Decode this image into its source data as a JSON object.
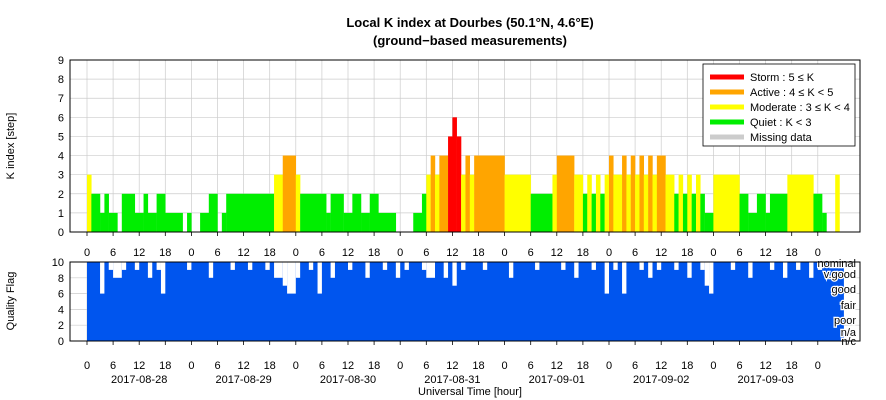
{
  "chart_data": [
    {
      "type": "bar",
      "title": "Local K index at Dourbes (50.1°N, 4.6°E)",
      "subtitle": "(ground−based measurements)",
      "ylabel": "K index [step]",
      "ylim": [
        0,
        9
      ],
      "yticks": [
        "0",
        "1",
        "2",
        "3",
        "4",
        "5",
        "6",
        "7",
        "8",
        "9"
      ],
      "grid": true,
      "legend_position": "top-right",
      "legend": [
        {
          "label": "Storm : 5 ≤ K",
          "color": "#ff0000"
        },
        {
          "label": "Active : 4 ≤ K < 5",
          "color": "#ffa500"
        },
        {
          "label": "Moderate : 3 ≤ K < 4",
          "color": "#ffff00"
        },
        {
          "label": "Quiet : K < 3",
          "color": "#00ee00"
        },
        {
          "label": "Missing data",
          "color": "#cccccc"
        }
      ],
      "x_unit": "hour",
      "x_range_hours": [
        0,
        174
      ],
      "segments": [
        {
          "start": 0,
          "end": 1,
          "k": 3
        },
        {
          "start": 1,
          "end": 3,
          "k": 2
        },
        {
          "start": 3,
          "end": 4,
          "k": 1
        },
        {
          "start": 4,
          "end": 5,
          "k": 2
        },
        {
          "start": 5,
          "end": 7,
          "k": 1
        },
        {
          "start": 7,
          "end": 8,
          "k": 0
        },
        {
          "start": 8,
          "end": 11,
          "k": 2
        },
        {
          "start": 11,
          "end": 13,
          "k": 1
        },
        {
          "start": 13,
          "end": 14,
          "k": 2
        },
        {
          "start": 14,
          "end": 16,
          "k": 1
        },
        {
          "start": 16,
          "end": 18,
          "k": 2
        },
        {
          "start": 18,
          "end": 22,
          "k": 1
        },
        {
          "start": 22,
          "end": 23,
          "k": 0
        },
        {
          "start": 23,
          "end": 24,
          "k": 1
        },
        {
          "start": 24,
          "end": 26,
          "k": 0
        },
        {
          "start": 26,
          "end": 28,
          "k": 1
        },
        {
          "start": 28,
          "end": 30,
          "k": 2
        },
        {
          "start": 30,
          "end": 31,
          "k": 0
        },
        {
          "start": 31,
          "end": 32,
          "k": 1
        },
        {
          "start": 32,
          "end": 43,
          "k": 2
        },
        {
          "start": 43,
          "end": 45,
          "k": 3
        },
        {
          "start": 45,
          "end": 48,
          "k": 4
        },
        {
          "start": 48,
          "end": 49,
          "k": 3
        },
        {
          "start": 49,
          "end": 55,
          "k": 2
        },
        {
          "start": 55,
          "end": 56,
          "k": 1
        },
        {
          "start": 56,
          "end": 59,
          "k": 2
        },
        {
          "start": 59,
          "end": 61,
          "k": 1
        },
        {
          "start": 61,
          "end": 63,
          "k": 2
        },
        {
          "start": 63,
          "end": 65,
          "k": 1
        },
        {
          "start": 65,
          "end": 67,
          "k": 2
        },
        {
          "start": 67,
          "end": 71,
          "k": 1
        },
        {
          "start": 71,
          "end": 75,
          "k": 0
        },
        {
          "start": 75,
          "end": 77,
          "k": 1
        },
        {
          "start": 77,
          "end": 78,
          "k": 2
        },
        {
          "start": 78,
          "end": 79,
          "k": 3
        },
        {
          "start": 79,
          "end": 80,
          "k": 4
        },
        {
          "start": 80,
          "end": 81,
          "k": 3
        },
        {
          "start": 81,
          "end": 83,
          "k": 4
        },
        {
          "start": 83,
          "end": 84,
          "k": 5
        },
        {
          "start": 84,
          "end": 85,
          "k": 6
        },
        {
          "start": 85,
          "end": 86,
          "k": 5
        },
        {
          "start": 86,
          "end": 87,
          "k": 3
        },
        {
          "start": 87,
          "end": 88,
          "k": 4
        },
        {
          "start": 88,
          "end": 89,
          "k": 3
        },
        {
          "start": 89,
          "end": 96,
          "k": 4
        },
        {
          "start": 96,
          "end": 102,
          "k": 3
        },
        {
          "start": 102,
          "end": 107,
          "k": 2
        },
        {
          "start": 107,
          "end": 108,
          "k": 3
        },
        {
          "start": 108,
          "end": 112,
          "k": 4
        },
        {
          "start": 112,
          "end": 114,
          "k": 3
        },
        {
          "start": 114,
          "end": 115,
          "k": 2
        },
        {
          "start": 115,
          "end": 116,
          "k": 3
        },
        {
          "start": 116,
          "end": 117,
          "k": 2
        },
        {
          "start": 117,
          "end": 118,
          "k": 3
        },
        {
          "start": 118,
          "end": 119,
          "k": 2
        },
        {
          "start": 119,
          "end": 120,
          "k": 3
        },
        {
          "start": 120,
          "end": 121,
          "k": 4
        },
        {
          "start": 121,
          "end": 123,
          "k": 3
        },
        {
          "start": 123,
          "end": 124,
          "k": 4
        },
        {
          "start": 124,
          "end": 125,
          "k": 3
        },
        {
          "start": 125,
          "end": 126,
          "k": 4
        },
        {
          "start": 126,
          "end": 127,
          "k": 3
        },
        {
          "start": 127,
          "end": 128,
          "k": 4
        },
        {
          "start": 128,
          "end": 129,
          "k": 3
        },
        {
          "start": 129,
          "end": 130,
          "k": 4
        },
        {
          "start": 130,
          "end": 131,
          "k": 3
        },
        {
          "start": 131,
          "end": 133,
          "k": 4
        },
        {
          "start": 133,
          "end": 135,
          "k": 3
        },
        {
          "start": 135,
          "end": 136,
          "k": 2
        },
        {
          "start": 136,
          "end": 137,
          "k": 3
        },
        {
          "start": 137,
          "end": 138,
          "k": 2
        },
        {
          "start": 138,
          "end": 139,
          "k": 3
        },
        {
          "start": 139,
          "end": 140,
          "k": 2
        },
        {
          "start": 140,
          "end": 141,
          "k": 3
        },
        {
          "start": 141,
          "end": 142,
          "k": 2
        },
        {
          "start": 142,
          "end": 144,
          "k": 1
        },
        {
          "start": 144,
          "end": 150,
          "k": 3
        },
        {
          "start": 150,
          "end": 152,
          "k": 2
        },
        {
          "start": 152,
          "end": 154,
          "k": 1
        },
        {
          "start": 154,
          "end": 156,
          "k": 2
        },
        {
          "start": 156,
          "end": 157,
          "k": 1
        },
        {
          "start": 157,
          "end": 161,
          "k": 2
        },
        {
          "start": 161,
          "end": 167,
          "k": 3
        },
        {
          "start": 167,
          "end": 169,
          "k": 2
        },
        {
          "start": 169,
          "end": 170,
          "k": 1
        },
        {
          "start": 170,
          "end": 172,
          "k": 0
        },
        {
          "start": 172,
          "end": 173,
          "k": 3
        }
      ]
    },
    {
      "type": "bar",
      "ylabel": "Quality Flag",
      "xlabel": "Universal Time [hour]",
      "ylim": [
        0,
        10
      ],
      "yticks": [
        "0",
        "2",
        "4",
        "6",
        "8",
        "10"
      ],
      "bar_color": "#0055ee",
      "base_quality": 10,
      "category_labels": [
        "nominal",
        "v.good",
        "good",
        "fair",
        "poor",
        "n/a",
        "n/c"
      ],
      "hour_ticks": [
        "0",
        "6",
        "12",
        "18",
        "0",
        "6",
        "12",
        "18",
        "0",
        "6",
        "12",
        "18",
        "0",
        "6",
        "12",
        "18",
        "0",
        "6",
        "12",
        "18",
        "0",
        "6",
        "12",
        "18",
        "0",
        "6",
        "12",
        "18",
        "0"
      ],
      "date_labels": [
        "2017-08-28",
        "2017-08-29",
        "2017-08-30",
        "2017-08-31",
        "2017-09-01",
        "2017-09-02",
        "2017-09-03"
      ],
      "dips": [
        {
          "start": 3,
          "end": 4,
          "q": 6
        },
        {
          "start": 5,
          "end": 6,
          "q": 9
        },
        {
          "start": 6,
          "end": 8,
          "q": 8
        },
        {
          "start": 8,
          "end": 9,
          "q": 9
        },
        {
          "start": 11,
          "end": 12,
          "q": 9
        },
        {
          "start": 14,
          "end": 15,
          "q": 8
        },
        {
          "start": 16,
          "end": 17,
          "q": 9
        },
        {
          "start": 17,
          "end": 18,
          "q": 6
        },
        {
          "start": 23,
          "end": 24,
          "q": 9
        },
        {
          "start": 28,
          "end": 29,
          "q": 8
        },
        {
          "start": 33,
          "end": 34,
          "q": 9
        },
        {
          "start": 37,
          "end": 38,
          "q": 9
        },
        {
          "start": 41,
          "end": 42,
          "q": 9
        },
        {
          "start": 43,
          "end": 45,
          "q": 8
        },
        {
          "start": 45,
          "end": 46,
          "q": 7
        },
        {
          "start": 46,
          "end": 48,
          "q": 6
        },
        {
          "start": 48,
          "end": 49,
          "q": 8
        },
        {
          "start": 51,
          "end": 52,
          "q": 9
        },
        {
          "start": 53,
          "end": 54,
          "q": 6
        },
        {
          "start": 56,
          "end": 57,
          "q": 8
        },
        {
          "start": 60,
          "end": 61,
          "q": 9
        },
        {
          "start": 64,
          "end": 65,
          "q": 8
        },
        {
          "start": 68,
          "end": 69,
          "q": 9
        },
        {
          "start": 71,
          "end": 72,
          "q": 8
        },
        {
          "start": 73,
          "end": 74,
          "q": 9
        },
        {
          "start": 77,
          "end": 78,
          "q": 9
        },
        {
          "start": 78,
          "end": 80,
          "q": 8
        },
        {
          "start": 82,
          "end": 83,
          "q": 8
        },
        {
          "start": 84,
          "end": 85,
          "q": 7
        },
        {
          "start": 86,
          "end": 87,
          "q": 9
        },
        {
          "start": 91,
          "end": 92,
          "q": 9
        },
        {
          "start": 97,
          "end": 98,
          "q": 8
        },
        {
          "start": 103,
          "end": 104,
          "q": 9
        },
        {
          "start": 109,
          "end": 110,
          "q": 9
        },
        {
          "start": 112,
          "end": 113,
          "q": 8
        },
        {
          "start": 116,
          "end": 117,
          "q": 9
        },
        {
          "start": 119,
          "end": 120,
          "q": 6
        },
        {
          "start": 121,
          "end": 122,
          "q": 9
        },
        {
          "start": 123,
          "end": 124,
          "q": 6
        },
        {
          "start": 127,
          "end": 128,
          "q": 9
        },
        {
          "start": 129,
          "end": 130,
          "q": 8
        },
        {
          "start": 131,
          "end": 132,
          "q": 9
        },
        {
          "start": 135,
          "end": 136,
          "q": 9
        },
        {
          "start": 138,
          "end": 139,
          "q": 8
        },
        {
          "start": 141,
          "end": 142,
          "q": 9
        },
        {
          "start": 142,
          "end": 143,
          "q": 7
        },
        {
          "start": 143,
          "end": 144,
          "q": 6
        },
        {
          "start": 148,
          "end": 149,
          "q": 9
        },
        {
          "start": 152,
          "end": 153,
          "q": 8
        },
        {
          "start": 157,
          "end": 158,
          "q": 9
        },
        {
          "start": 160,
          "end": 161,
          "q": 8
        },
        {
          "start": 163,
          "end": 164,
          "q": 9
        },
        {
          "start": 166,
          "end": 167,
          "q": 8
        },
        {
          "start": 168,
          "end": 169,
          "q": 9
        }
      ]
    }
  ]
}
